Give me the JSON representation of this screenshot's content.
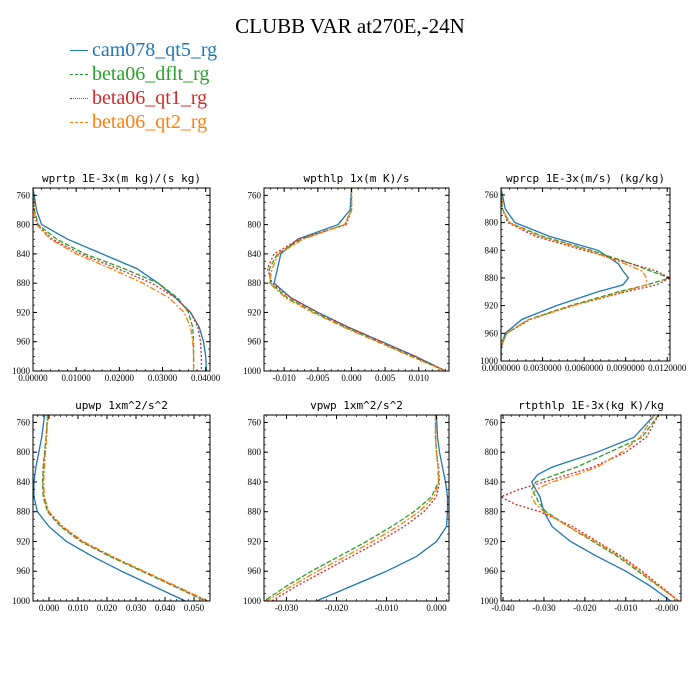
{
  "title": "CLUBB VAR at270E,-24N",
  "legend": [
    {
      "name": "cam078_qt5_rg",
      "color": "#1f77b4",
      "dash": ""
    },
    {
      "name": "beta06_dflt_rg",
      "color": "#2ca02c",
      "dash": "5,2"
    },
    {
      "name": "beta06_qt1_rg",
      "color": "#d62728",
      "dash": "2,2"
    },
    {
      "name": "beta06_qt2_rg",
      "color": "#ff7f0e",
      "dash": "6,2,2,2"
    }
  ],
  "chart_data": [
    {
      "type": "line",
      "title": "wprtp  1E-3x(m kg)/(s kg)",
      "xlim": [
        0,
        0.041
      ],
      "ylim": [
        750,
        1000
      ],
      "xticks": [
        "0.00000",
        "0.01000",
        "0.02000",
        "0.03000",
        "0.04000"
      ],
      "xtick_values": [
        0,
        0.01,
        0.02,
        0.03,
        0.04
      ],
      "yticks": [
        760,
        800,
        840,
        880,
        920,
        960,
        1000
      ],
      "y": [
        750,
        780,
        800,
        820,
        840,
        860,
        880,
        900,
        920,
        940,
        960,
        980,
        1000
      ],
      "series": [
        {
          "name": "cam078_qt5_rg",
          "values": [
            0.0,
            0.0008,
            0.002,
            0.008,
            0.016,
            0.024,
            0.029,
            0.033,
            0.0365,
            0.0385,
            0.0395,
            0.04,
            0.0402
          ]
        },
        {
          "name": "beta06_dflt_rg",
          "values": [
            0.0,
            0.0003,
            0.0012,
            0.0055,
            0.012,
            0.021,
            0.029,
            0.0335,
            0.036,
            0.037,
            0.0372,
            0.0372,
            0.0372
          ]
        },
        {
          "name": "beta06_qt1_rg",
          "values": [
            0.0,
            0.0003,
            0.001,
            0.0045,
            0.011,
            0.0195,
            0.0275,
            0.033,
            0.0365,
            0.0382,
            0.0388,
            0.039,
            0.039
          ]
        },
        {
          "name": "beta06_qt2_rg",
          "values": [
            0.0,
            0.0002,
            0.0008,
            0.004,
            0.01,
            0.018,
            0.0255,
            0.0315,
            0.035,
            0.0365,
            0.037,
            0.0372,
            0.0372
          ]
        }
      ]
    },
    {
      "type": "line",
      "title": "wpthlp  1x(m K)/s",
      "xlim": [
        -0.013,
        0.0145
      ],
      "ylim": [
        750,
        1000
      ],
      "xticks": [
        "-0.010",
        "-0.005",
        "0.000",
        "0.005",
        "0.010"
      ],
      "xtick_values": [
        -0.01,
        -0.005,
        0,
        0.005,
        0.01
      ],
      "yticks": [
        760,
        800,
        840,
        880,
        920,
        960,
        1000
      ],
      "y": [
        750,
        780,
        800,
        820,
        840,
        860,
        880,
        900,
        920,
        940,
        960,
        980,
        1000
      ],
      "series": [
        {
          "name": "cam078_qt5_rg",
          "values": [
            0.0,
            -0.0002,
            -0.002,
            -0.008,
            -0.0105,
            -0.011,
            -0.0115,
            -0.009,
            -0.005,
            -0.0005,
            0.0045,
            0.0095,
            0.014
          ]
        },
        {
          "name": "beta06_dflt_rg",
          "values": [
            0.0,
            0.0,
            -0.001,
            -0.0075,
            -0.011,
            -0.0122,
            -0.012,
            -0.0095,
            -0.0055,
            -0.001,
            0.004,
            0.009,
            0.014
          ]
        },
        {
          "name": "beta06_qt1_rg",
          "values": [
            0.0,
            0.0,
            -0.0008,
            -0.0078,
            -0.0115,
            -0.0125,
            -0.0118,
            -0.009,
            -0.005,
            -0.0005,
            0.0045,
            0.0095,
            0.014
          ]
        },
        {
          "name": "beta06_qt2_rg",
          "values": [
            0.0,
            0.0,
            -0.001,
            -0.0072,
            -0.0108,
            -0.0118,
            -0.0122,
            -0.0098,
            -0.0058,
            -0.0012,
            0.0038,
            0.0088,
            0.014
          ]
        }
      ]
    },
    {
      "type": "line",
      "title": "wprcp  1E-3x(m/s) (kg/kg)",
      "xlim": [
        0,
        0.0122
      ],
      "ylim": [
        750,
        1000
      ],
      "xticks": [
        "0.0000000",
        "0.0030000",
        "0.0060000",
        "0.0090000",
        "0.0120000"
      ],
      "xtick_values": [
        0,
        0.003,
        0.006,
        0.009,
        0.012
      ],
      "yticks": [
        760,
        800,
        840,
        880,
        920,
        960,
        1000
      ],
      "y": [
        750,
        780,
        800,
        820,
        840,
        860,
        870,
        880,
        890,
        900,
        920,
        940,
        960,
        980,
        1000
      ],
      "series": [
        {
          "name": "cam078_qt5_rg",
          "values": [
            0.0,
            0.0003,
            0.001,
            0.0035,
            0.007,
            0.0085,
            0.0088,
            0.0092,
            0.0088,
            0.007,
            0.004,
            0.0015,
            0.0003,
            0.0,
            0.0
          ]
        },
        {
          "name": "beta06_dflt_rg",
          "values": [
            0.0,
            0.0001,
            0.0006,
            0.003,
            0.0065,
            0.0095,
            0.0108,
            0.0122,
            0.0105,
            0.0085,
            0.005,
            0.002,
            0.0004,
            0.0,
            0.0
          ]
        },
        {
          "name": "beta06_qt1_rg",
          "values": [
            0.0,
            0.0001,
            0.0005,
            0.0025,
            0.006,
            0.0095,
            0.0112,
            0.0122,
            0.0112,
            0.009,
            0.0052,
            0.0021,
            0.0004,
            0.0,
            0.0
          ]
        },
        {
          "name": "beta06_qt2_rg",
          "values": [
            0.0,
            0.0001,
            0.0006,
            0.0028,
            0.0063,
            0.009,
            0.0102,
            0.0105,
            0.0105,
            0.0088,
            0.0052,
            0.002,
            0.0004,
            0.0,
            0.0
          ]
        }
      ]
    },
    {
      "type": "line",
      "title": "upwp  1xm^2/s^2",
      "xlim": [
        -0.0055,
        0.0555
      ],
      "ylim": [
        750,
        1000
      ],
      "xticks": [
        "0.000",
        "0.010",
        "0.020",
        "0.030",
        "0.040",
        "0.050"
      ],
      "xtick_values": [
        0,
        0.01,
        0.02,
        0.03,
        0.04,
        0.05
      ],
      "yticks": [
        760,
        800,
        840,
        880,
        920,
        960,
        1000
      ],
      "y": [
        750,
        780,
        800,
        820,
        840,
        860,
        880,
        900,
        920,
        940,
        960,
        980,
        1000
      ],
      "series": [
        {
          "name": "cam078_qt5_rg",
          "values": [
            -0.0015,
            -0.0025,
            -0.0035,
            -0.0045,
            -0.0052,
            -0.0052,
            -0.004,
            0.0,
            0.006,
            0.015,
            0.025,
            0.036,
            0.047
          ]
        },
        {
          "name": "beta06_dflt_rg",
          "values": [
            -0.0005,
            -0.001,
            -0.0015,
            -0.002,
            -0.0022,
            -0.002,
            -0.0005,
            0.004,
            0.011,
            0.021,
            0.032,
            0.043,
            0.054
          ]
        },
        {
          "name": "beta06_qt1_rg",
          "values": [
            -0.0004,
            -0.0009,
            -0.0014,
            -0.0018,
            -0.002,
            -0.0018,
            -0.0002,
            0.0045,
            0.0115,
            0.0215,
            0.0325,
            0.0435,
            0.0545
          ]
        },
        {
          "name": "beta06_qt2_rg",
          "values": [
            -0.0003,
            -0.0008,
            -0.0012,
            -0.0016,
            -0.0018,
            -0.0016,
            0.0,
            0.0048,
            0.0118,
            0.0218,
            0.0328,
            0.0438,
            0.0548
          ]
        }
      ]
    },
    {
      "type": "line",
      "title": "vpwp  1xm^2/s^2",
      "xlim": [
        -0.0345,
        0.0025
      ],
      "ylim": [
        750,
        1000
      ],
      "xticks": [
        "-0.030",
        "-0.020",
        "-0.010",
        "0.000"
      ],
      "xtick_values": [
        -0.03,
        -0.02,
        -0.01,
        0
      ],
      "yticks": [
        760,
        800,
        840,
        880,
        920,
        960,
        1000
      ],
      "y": [
        750,
        780,
        800,
        820,
        840,
        860,
        880,
        900,
        920,
        940,
        960,
        980,
        1000
      ],
      "series": [
        {
          "name": "cam078_qt5_rg",
          "values": [
            0.0,
            0.0002,
            0.0006,
            0.0012,
            0.0018,
            0.0022,
            0.0022,
            0.002,
            0.0,
            -0.004,
            -0.01,
            -0.017,
            -0.024
          ]
        },
        {
          "name": "beta06_dflt_rg",
          "values": [
            -0.0002,
            -0.0002,
            0.0,
            0.0003,
            0.0004,
            -0.001,
            -0.0045,
            -0.009,
            -0.014,
            -0.0195,
            -0.025,
            -0.03,
            -0.0345
          ]
        },
        {
          "name": "beta06_qt1_rg",
          "values": [
            -0.0002,
            -0.0002,
            0.0,
            0.0004,
            0.0006,
            0.0,
            -0.0025,
            -0.0065,
            -0.0115,
            -0.017,
            -0.0225,
            -0.028,
            -0.033
          ]
        },
        {
          "name": "beta06_qt2_rg",
          "values": [
            -0.0002,
            -0.0002,
            0.0,
            0.0003,
            0.0005,
            -0.0005,
            -0.0035,
            -0.0078,
            -0.0128,
            -0.0182,
            -0.0238,
            -0.029,
            -0.034
          ]
        }
      ]
    },
    {
      "type": "line",
      "title": "rtpthlp  1E-3x(kg K)/kg",
      "xlim": [
        -0.0405,
        0.0035
      ],
      "ylim": [
        750,
        1000
      ],
      "xticks": [
        "-0.040",
        "-0.030",
        "-0.020",
        "-0.010",
        "-0.000"
      ],
      "xtick_values": [
        -0.04,
        -0.03,
        -0.02,
        -0.01,
        0
      ],
      "yticks": [
        760,
        800,
        840,
        880,
        920,
        960,
        1000
      ],
      "y": [
        750,
        780,
        800,
        820,
        830,
        840,
        850,
        860,
        870,
        880,
        900,
        920,
        940,
        960,
        980,
        1000
      ],
      "series": [
        {
          "name": "cam078_qt5_rg",
          "values": [
            -0.003,
            -0.008,
            -0.017,
            -0.028,
            -0.0315,
            -0.033,
            -0.032,
            -0.031,
            -0.0305,
            -0.03,
            -0.028,
            -0.0235,
            -0.017,
            -0.01,
            -0.004,
            0.001
          ]
        },
        {
          "name": "beta06_dflt_rg",
          "values": [
            -0.002,
            -0.006,
            -0.014,
            -0.022,
            -0.027,
            -0.032,
            -0.033,
            -0.032,
            -0.031,
            -0.0295,
            -0.024,
            -0.018,
            -0.012,
            -0.007,
            -0.002,
            0.003
          ]
        },
        {
          "name": "beta06_qt1_rg",
          "values": [
            -0.002,
            -0.005,
            -0.01,
            -0.018,
            -0.024,
            -0.03,
            -0.036,
            -0.0405,
            -0.037,
            -0.031,
            -0.023,
            -0.017,
            -0.011,
            -0.006,
            -0.0015,
            0.003
          ]
        },
        {
          "name": "beta06_qt2_rg",
          "values": [
            -0.003,
            -0.0065,
            -0.011,
            -0.017,
            -0.022,
            -0.028,
            -0.032,
            -0.033,
            -0.032,
            -0.03,
            -0.024,
            -0.0175,
            -0.0115,
            -0.0065,
            -0.002,
            0.003
          ]
        }
      ]
    }
  ]
}
